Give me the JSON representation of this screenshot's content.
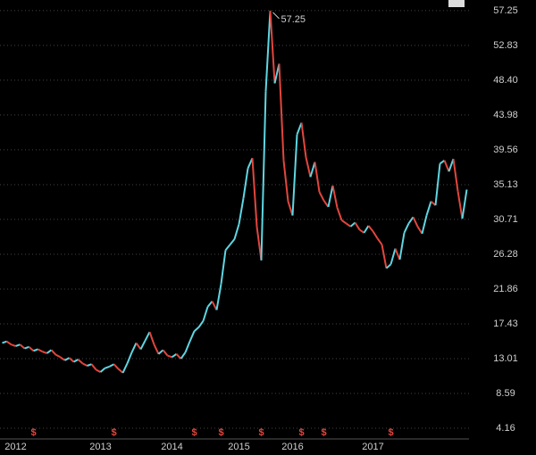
{
  "chart_data": {
    "type": "line",
    "categories": [
      null,
      null,
      null,
      "2012",
      null,
      null,
      null,
      null,
      null,
      null,
      null,
      null,
      null,
      null,
      null,
      null,
      null,
      null,
      null,
      null,
      null,
      null,
      "2013",
      null,
      null,
      null,
      null,
      null,
      null,
      null,
      null,
      null,
      null,
      null,
      null,
      null,
      null,
      null,
      "2014",
      null,
      null,
      null,
      null,
      null,
      null,
      null,
      null,
      null,
      null,
      null,
      null,
      null,
      null,
      "2015",
      null,
      null,
      null,
      null,
      null,
      null,
      null,
      null,
      null,
      null,
      null,
      "2016",
      null,
      null,
      null,
      null,
      null,
      null,
      null,
      null,
      null,
      null,
      null,
      null,
      null,
      null,
      null,
      null,
      null,
      "2017",
      null,
      null,
      null,
      null,
      null,
      null,
      null,
      null,
      null,
      null,
      null,
      null,
      null,
      null,
      null,
      null,
      null,
      null,
      null,
      null,
      null
    ],
    "dividend_flags": [
      null,
      null,
      null,
      null,
      null,
      null,
      null,
      "$",
      null,
      null,
      null,
      null,
      null,
      null,
      null,
      null,
      null,
      null,
      null,
      null,
      null,
      null,
      null,
      null,
      null,
      "$",
      null,
      null,
      null,
      null,
      null,
      null,
      null,
      null,
      null,
      null,
      null,
      null,
      null,
      null,
      null,
      null,
      null,
      "$",
      null,
      null,
      null,
      null,
      null,
      "$",
      null,
      null,
      null,
      null,
      null,
      null,
      null,
      null,
      "$",
      null,
      null,
      null,
      null,
      null,
      null,
      null,
      null,
      "$",
      null,
      null,
      null,
      null,
      "$",
      null,
      null,
      null,
      null,
      null,
      null,
      null,
      null,
      null,
      null,
      null,
      null,
      null,
      null,
      "$",
      null,
      null,
      null,
      null,
      null,
      null,
      null,
      null,
      null,
      null,
      null,
      null,
      null,
      null,
      null,
      null,
      null
    ],
    "values": [
      15.0,
      15.2,
      14.8,
      14.6,
      14.8,
      14.3,
      14.5,
      14.0,
      14.2,
      13.9,
      13.7,
      14.1,
      13.5,
      13.2,
      12.8,
      13.1,
      12.6,
      12.9,
      12.4,
      12.1,
      12.3,
      11.6,
      11.3,
      11.8,
      12.0,
      12.3,
      11.7,
      11.2,
      12.4,
      13.8,
      15.0,
      14.2,
      15.3,
      16.4,
      14.8,
      13.6,
      14.1,
      13.4,
      13.2,
      13.6,
      13.0,
      13.8,
      15.2,
      16.5,
      17.0,
      17.8,
      19.6,
      20.3,
      19.2,
      22.5,
      26.8,
      27.5,
      28.2,
      30.1,
      33.4,
      37.2,
      38.5,
      29.8,
      25.5,
      47.0,
      57.25,
      48.0,
      50.5,
      38.2,
      33.0,
      31.2,
      41.5,
      43.0,
      38.6,
      36.1,
      38.0,
      34.2,
      33.1,
      32.3,
      35.0,
      32.2,
      30.6,
      30.2,
      29.8,
      30.3,
      29.4,
      29.0,
      29.9,
      29.2,
      28.3,
      27.5,
      24.5,
      25.0,
      27.0,
      25.6,
      29.0,
      30.2,
      31.0,
      29.8,
      28.9,
      31.2,
      33.0,
      32.5,
      37.8,
      38.2,
      36.8,
      38.4,
      34.3,
      30.8,
      34.5
    ],
    "up_color": "#5fd6e2",
    "down_color": "#e2463e",
    "peak_label": "57.25",
    "ylim": [
      2.8,
      58.6
    ],
    "yticks": [
      4.16,
      8.59,
      13.01,
      17.43,
      21.86,
      26.28,
      30.71,
      35.13,
      39.56,
      43.98,
      {
        "value": 48.4,
        "label": "48.40"
      },
      52.83,
      57.25
    ],
    "grid": true
  }
}
